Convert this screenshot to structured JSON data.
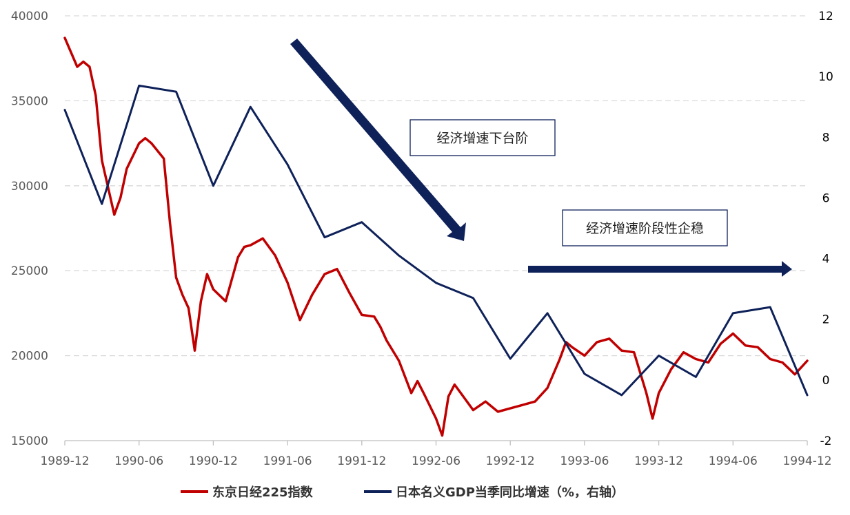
{
  "chart_data": {
    "type": "line",
    "x_ticks": [
      "1989-12",
      "1990-06",
      "1990-12",
      "1991-06",
      "1991-12",
      "1992-06",
      "1992-12",
      "1993-06",
      "1993-12",
      "1994-06",
      "1994-12"
    ],
    "y_left": {
      "ticks": [
        "40000",
        "35000",
        "30000",
        "25000",
        "20000",
        "15000"
      ],
      "values": [
        40000,
        35000,
        30000,
        25000,
        20000,
        15000
      ],
      "range": [
        15000,
        40000
      ]
    },
    "y_right": {
      "ticks": [
        "12",
        "10",
        "8",
        "6",
        "4",
        "2",
        "0",
        "-2"
      ],
      "values": [
        12,
        10,
        8,
        6,
        4,
        2,
        0,
        -2
      ],
      "range": [
        -2,
        12
      ]
    },
    "grid": "horizontal dashed",
    "legend_position": "bottom",
    "colors": {
      "nikkei": "#C00000",
      "gdp": "#0E2159",
      "grid": "#D9D9D9",
      "axis": "#BFBFBF"
    },
    "series": [
      {
        "name": "东京日经225指数",
        "axis": "left",
        "points": [
          [
            "1989-12",
            38700
          ],
          [
            "1990-01",
            37000
          ],
          [
            "1990-01",
            37300
          ],
          [
            "1990-02",
            37000
          ],
          [
            "1990-02",
            35300
          ],
          [
            "1990-03",
            31500
          ],
          [
            "1990-04",
            28300
          ],
          [
            "1990-04",
            29300
          ],
          [
            "1990-05",
            31000
          ],
          [
            "1990-06",
            32500
          ],
          [
            "1990-06",
            32800
          ],
          [
            "1990-07",
            32500
          ],
          [
            "1990-08",
            31600
          ],
          [
            "1990-08",
            27800
          ],
          [
            "1990-09",
            24600
          ],
          [
            "1990-09",
            23600
          ],
          [
            "1990-10",
            22800
          ],
          [
            "1990-10",
            20300
          ],
          [
            "1990-11",
            23200
          ],
          [
            "1990-11",
            24800
          ],
          [
            "1990-12",
            23900
          ],
          [
            "1991-01",
            23200
          ],
          [
            "1991-02",
            25800
          ],
          [
            "1991-02",
            26400
          ],
          [
            "1991-03",
            26500
          ],
          [
            "1991-04",
            26900
          ],
          [
            "1991-05",
            25900
          ],
          [
            "1991-06",
            24300
          ],
          [
            "1991-06",
            23200
          ],
          [
            "1991-07",
            22100
          ],
          [
            "1991-08",
            23600
          ],
          [
            "1991-09",
            24800
          ],
          [
            "1991-10",
            25100
          ],
          [
            "1991-11",
            23700
          ],
          [
            "1991-12",
            22400
          ],
          [
            "1992-01",
            22300
          ],
          [
            "1992-01",
            21700
          ],
          [
            "1992-02",
            20900
          ],
          [
            "1992-03",
            19700
          ],
          [
            "1992-04",
            17800
          ],
          [
            "1992-04",
            18500
          ],
          [
            "1992-05",
            17800
          ],
          [
            "1992-06",
            16300
          ],
          [
            "1992-06",
            15300
          ],
          [
            "1992-07",
            17600
          ],
          [
            "1992-07",
            18300
          ],
          [
            "1992-08",
            17800
          ],
          [
            "1992-09",
            16800
          ],
          [
            "1992-10",
            17300
          ],
          [
            "1992-11",
            16700
          ],
          [
            "1992-12",
            16900
          ],
          [
            "1993-01",
            17100
          ],
          [
            "1993-02",
            17300
          ],
          [
            "1993-03",
            18100
          ],
          [
            "1993-04",
            19800
          ],
          [
            "1993-04",
            20800
          ],
          [
            "1993-05",
            20500
          ],
          [
            "1993-06",
            20000
          ],
          [
            "1993-06",
            20400
          ],
          [
            "1993-07",
            20800
          ],
          [
            "1993-08",
            21000
          ],
          [
            "1993-09",
            20300
          ],
          [
            "1993-10",
            20200
          ],
          [
            "1993-11",
            17800
          ],
          [
            "1993-11",
            16300
          ],
          [
            "1993-12",
            17800
          ],
          [
            "1994-01",
            19200
          ],
          [
            "1994-02",
            20200
          ],
          [
            "1994-03",
            19800
          ],
          [
            "1994-04",
            19600
          ],
          [
            "1994-05",
            20700
          ],
          [
            "1994-06",
            21300
          ],
          [
            "1994-07",
            20600
          ],
          [
            "1994-08",
            20500
          ],
          [
            "1994-09",
            19800
          ],
          [
            "1994-10",
            19600
          ],
          [
            "1994-11",
            18900
          ],
          [
            "1994-12",
            19700
          ]
        ]
      },
      {
        "name": "日本名义GDP当季同比增速（%，右轴）",
        "axis": "right",
        "points": [
          [
            "1989-12",
            8.9
          ],
          [
            "1990-03",
            5.8
          ],
          [
            "1990-06",
            9.7
          ],
          [
            "1990-09",
            9.5
          ],
          [
            "1990-12",
            6.4
          ],
          [
            "1991-03",
            9.0
          ],
          [
            "1991-06",
            7.1
          ],
          [
            "1991-09",
            4.7
          ],
          [
            "1991-12",
            5.2
          ],
          [
            "1992-03",
            4.1
          ],
          [
            "1992-06",
            3.2
          ],
          [
            "1992-09",
            2.7
          ],
          [
            "1992-12",
            0.7
          ],
          [
            "1993-03",
            2.2
          ],
          [
            "1993-06",
            0.2
          ],
          [
            "1993-09",
            -0.5
          ],
          [
            "1993-12",
            0.8
          ],
          [
            "1994-03",
            0.1
          ],
          [
            "1994-06",
            2.2
          ],
          [
            "1994-09",
            2.4
          ],
          [
            "1994-12",
            -0.5
          ]
        ]
      }
    ],
    "annotations": [
      {
        "text": "经济增速下台阶"
      },
      {
        "text": "经济增速阶段性企稳"
      }
    ]
  }
}
